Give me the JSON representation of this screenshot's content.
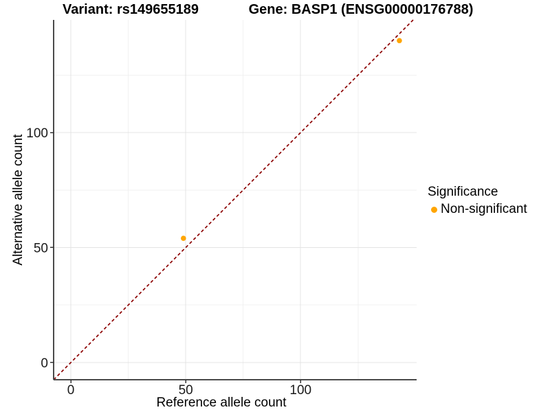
{
  "page": {
    "background": "#ffffff"
  },
  "titles": {
    "variant_title": "Variant: rs149655189",
    "gene_title": "Gene: BASP1 (ENSG00000176788)"
  },
  "legend": {
    "title": "Significance",
    "items": [
      {
        "label": "Non-significant",
        "color": "#FFA500"
      }
    ]
  },
  "chart_data": {
    "type": "scatter",
    "title": "Variant: rs149655189 / Gene: BASP1 (ENSG00000176788)",
    "xlabel": "Reference allele count",
    "ylabel": "Alternative allele count",
    "xlim": [
      -7.5,
      150.5
    ],
    "ylim": [
      -7.5,
      149
    ],
    "x_ticks": [
      0,
      50,
      100
    ],
    "y_ticks": [
      0,
      50,
      100
    ],
    "x_minor_ticks": [
      25,
      75,
      125
    ],
    "y_minor_ticks": [
      25,
      75,
      125
    ],
    "grid": true,
    "legend_position": "right",
    "series": [
      {
        "name": "Non-significant",
        "color": "#FFA500",
        "points": [
          [
            49,
            54
          ],
          [
            143,
            140
          ]
        ]
      }
    ],
    "reference_line": {
      "kind": "identity",
      "slope": 1,
      "intercept": 0,
      "style": "dashed",
      "color": "#8B0000"
    }
  },
  "style": {
    "axis_line_color": "#4a4a4a",
    "tick_color": "#333333",
    "tick_label_color": "#1a1a1a",
    "grid_major_color": "#e4e4e4",
    "grid_minor_color": "#f1f1f1",
    "point_color": "#FFA500",
    "dashed_line_color": "#8B0000"
  }
}
